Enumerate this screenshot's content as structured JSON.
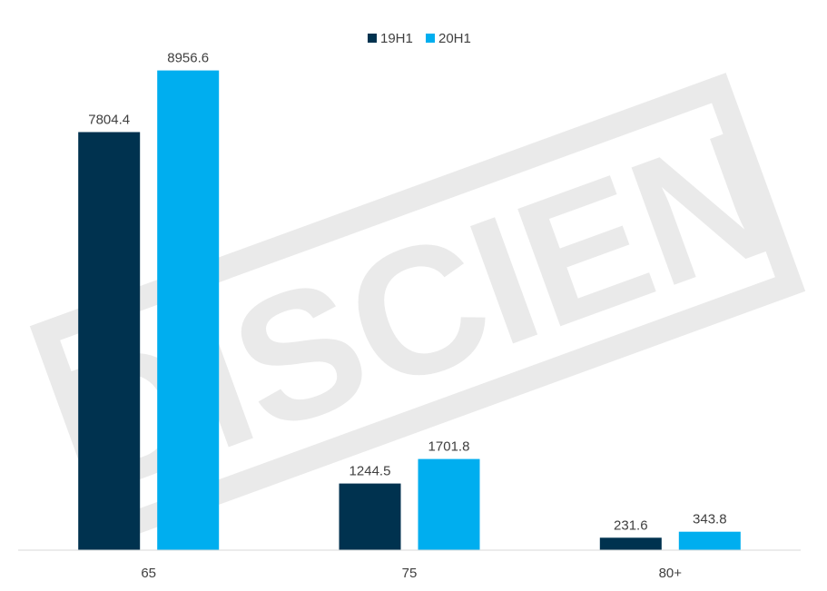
{
  "chart_data": {
    "type": "bar",
    "title": "",
    "xlabel": "",
    "ylabel": "",
    "categories": [
      "65",
      "75",
      "80+"
    ],
    "series": [
      {
        "name": "19H1",
        "values": [
          7804.4,
          1244.5,
          231.6
        ],
        "color": "#00324f"
      },
      {
        "name": "20H1",
        "values": [
          8956.6,
          1701.8,
          343.8
        ],
        "color": "#00aeef"
      }
    ],
    "data_labels": [
      [
        "7804.4",
        "1244.5",
        "231.6"
      ],
      [
        "8956.6",
        "1701.8",
        "343.8"
      ]
    ],
    "ylim": [
      0,
      10000
    ],
    "grid": false,
    "legend": "top-center",
    "watermark": {
      "text": "DISCIEN"
    }
  }
}
